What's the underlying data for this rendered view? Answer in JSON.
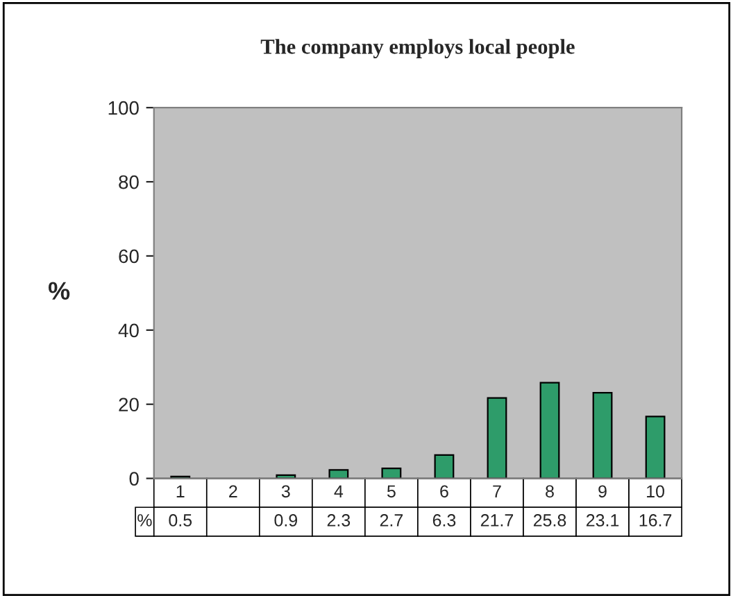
{
  "chart_data": {
    "type": "bar",
    "title": "The company employs local people",
    "ylabel": "%",
    "categories": [
      "1",
      "2",
      "3",
      "4",
      "5",
      "6",
      "7",
      "8",
      "9",
      "10"
    ],
    "series": [
      {
        "name": "%",
        "color": "#2e9c6a",
        "values": [
          0.5,
          null,
          0.9,
          2.3,
          2.7,
          6.3,
          21.7,
          25.8,
          23.1,
          16.7
        ]
      }
    ],
    "ylim": [
      0,
      100
    ],
    "yticks": [
      0,
      20,
      40,
      60,
      80,
      100
    ],
    "grid": false,
    "legend": false,
    "data_labels": true
  }
}
